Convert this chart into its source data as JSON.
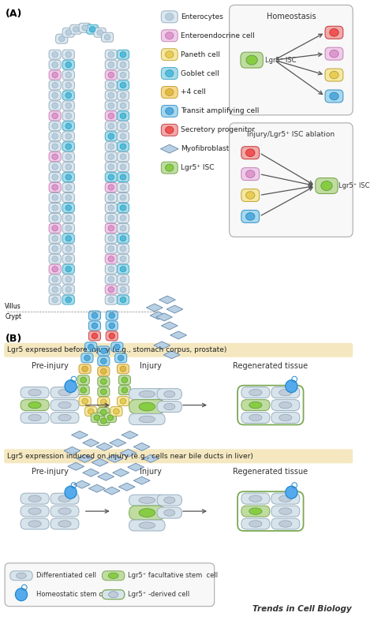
{
  "bg_color": "#ffffff",
  "panel_b_bg": "#f5e8c0",
  "panel_b_label1": "Lgr5 expressed before injury (e.g., stomach corpus, prostate)",
  "panel_b_label2": "Lgr5 expression induced on injury (e.g., cells near bile ducts in liver)",
  "journal": "Trends in Cell Biology",
  "c_enter": {
    "fill": "#dce8f0",
    "stroke": "#9ab0c0",
    "nf": "#b8cfe0",
    "ns": "#9ab0c0"
  },
  "c_entero": {
    "fill": "#eecce8",
    "stroke": "#cc88bb",
    "nf": "#dd99cc",
    "ns": "#bb66aa"
  },
  "c_paneth": {
    "fill": "#f5e8a0",
    "stroke": "#c8aa44",
    "nf": "#e8cc55",
    "ns": "#b89933"
  },
  "c_goblet": {
    "fill": "#a8dce8",
    "stroke": "#44aacc",
    "nf": "#55bbdd",
    "ns": "#2299bb"
  },
  "c_plus4": {
    "fill": "#f5d888",
    "stroke": "#c8a040",
    "nf": "#e0bb44",
    "ns": "#b89030"
  },
  "c_ta": {
    "fill": "#a8d8ee",
    "stroke": "#4499cc",
    "nf": "#55aadd",
    "ns": "#2288bb"
  },
  "c_secpro": {
    "fill": "#f0aaaa",
    "stroke": "#cc4444",
    "nf": "#ee5555",
    "ns": "#cc2222"
  },
  "c_lgr5": {
    "fill": "#c0dca0",
    "stroke": "#7aaa55",
    "nf": "#88cc44",
    "ns": "#559933"
  },
  "c_myo": {
    "fill": "#b8d0e4",
    "stroke": "#6688aa"
  },
  "legend_items": [
    {
      "label": "Enterocytes",
      "shape": "cell",
      "fill": "#dce8f0",
      "stroke": "#9ab0c0",
      "nf": "#b8cfe0",
      "ns": "#9ab0c0"
    },
    {
      "label": "Enteroendocrine cell",
      "shape": "cell",
      "fill": "#eecce8",
      "stroke": "#cc88bb",
      "nf": "#dd99cc",
      "ns": "#bb66aa"
    },
    {
      "label": "Paneth cell",
      "shape": "cell",
      "fill": "#f5e8a0",
      "stroke": "#c8aa44",
      "nf": "#e8cc55",
      "ns": "#b89933"
    },
    {
      "label": "Goblet cell",
      "shape": "cell",
      "fill": "#a8dce8",
      "stroke": "#44aacc",
      "nf": "#55bbdd",
      "ns": "#2299bb"
    },
    {
      "label": "+4 cell",
      "shape": "cell",
      "fill": "#f5d888",
      "stroke": "#c8a040",
      "nf": "#e0bb44",
      "ns": "#b89030"
    },
    {
      "label": "Transit amplifying cell",
      "shape": "cell",
      "fill": "#a8d8ee",
      "stroke": "#4499cc",
      "nf": "#55aadd",
      "ns": "#2288bb"
    },
    {
      "label": "Secretory progenitor",
      "shape": "cell",
      "fill": "#f0aaaa",
      "stroke": "#cc4444",
      "nf": "#ee5555",
      "ns": "#cc2222"
    },
    {
      "label": "Myofibroblast",
      "shape": "diamond",
      "fill": "#b8d0e4",
      "stroke": "#6688aa",
      "nf": null,
      "ns": null
    },
    {
      "label": "Lgr5⁺ ISC",
      "shape": "cell",
      "fill": "#c0dca0",
      "stroke": "#7aaa55",
      "nf": "#88cc44",
      "ns": "#559933"
    }
  ]
}
